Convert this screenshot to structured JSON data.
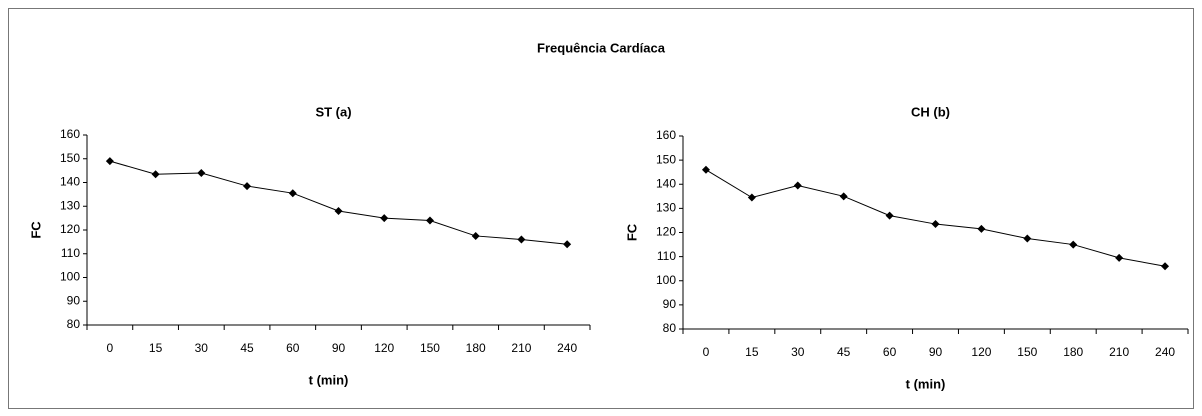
{
  "title": "Frequência Cardíaca",
  "chart_data": [
    {
      "type": "line",
      "title": "ST (a)",
      "xlabel": "t (min)",
      "ylabel": "FC",
      "categories": [
        "0",
        "15",
        "30",
        "45",
        "60",
        "90",
        "120",
        "150",
        "180",
        "210",
        "240"
      ],
      "series": [
        {
          "color": "#000000",
          "values": [
            149,
            143.5,
            144,
            138.5,
            135.5,
            128,
            125,
            124,
            117.5,
            116,
            114
          ]
        }
      ],
      "ylim": [
        80,
        160
      ],
      "yticks": [
        80,
        90,
        100,
        110,
        120,
        130,
        140,
        150,
        160
      ],
      "grid": false
    },
    {
      "type": "line",
      "title": "CH (b)",
      "xlabel": "t (min)",
      "ylabel": "FC",
      "categories": [
        "0",
        "15",
        "30",
        "45",
        "60",
        "90",
        "120",
        "150",
        "180",
        "210",
        "240"
      ],
      "series": [
        {
          "color": "#000000",
          "values": [
            146,
            134.5,
            139.5,
            135,
            127,
            123.5,
            121.5,
            117.5,
            115,
            109.5,
            106
          ]
        }
      ],
      "ylim": [
        80,
        160
      ],
      "yticks": [
        80,
        90,
        100,
        110,
        120,
        130,
        140,
        150,
        160
      ],
      "grid": false
    }
  ]
}
